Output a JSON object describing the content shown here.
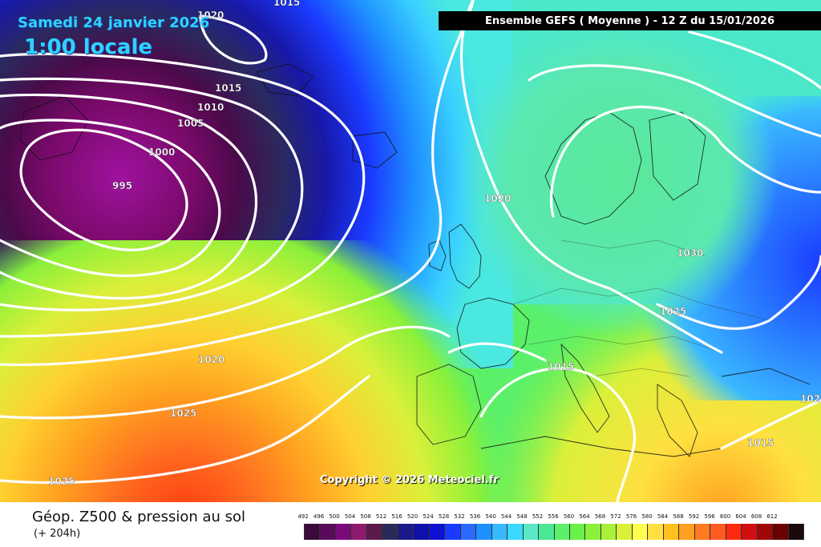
{
  "header": {
    "date": "Samedi 24 janvier 2026",
    "time": "1:00 locale",
    "ensemble": "Ensemble GEFS  ( Moyenne )  -  12 Z du 15/01/2026"
  },
  "footer": {
    "title": "Géop. Z500 & pression au sol",
    "lead_time": "(+ 204h)",
    "copyright": "Copyright © 2026 Meteociel.fr"
  },
  "isobar_labels": [
    "1015",
    "1020",
    "1015",
    "1010",
    "1005",
    "1000",
    "995",
    "1020",
    "1025",
    "1025",
    "1020",
    "1030",
    "1025",
    "1015",
    "1015",
    "102"
  ],
  "legend": {
    "values": [
      "492",
      "496",
      "500",
      "504",
      "508",
      "512",
      "516",
      "520",
      "524",
      "528",
      "532",
      "536",
      "540",
      "544",
      "548",
      "552",
      "556",
      "560",
      "564",
      "568",
      "572",
      "576",
      "580",
      "584",
      "588",
      "592",
      "596",
      "600",
      "604",
      "608",
      "612"
    ],
    "colors": [
      "#3a0a3a",
      "#5a0a5a",
      "#7a0a7a",
      "#8e1a6e",
      "#5a1a4a",
      "#2a2a5a",
      "#1a1a8a",
      "#1010aa",
      "#1010d0",
      "#1a3aff",
      "#2a6aff",
      "#1e90ff",
      "#3ab8ff",
      "#3ad8ff",
      "#5ae8c8",
      "#4ae896",
      "#5af06a",
      "#6af04a",
      "#8af03a",
      "#aaf03a",
      "#daf03a",
      "#ffff50",
      "#ffe040",
      "#ffc020",
      "#ffa020",
      "#ff7a20",
      "#ff5a20",
      "#ff2a10",
      "#d01010",
      "#a00808",
      "#6a0000",
      "#1a0a0a"
    ]
  }
}
